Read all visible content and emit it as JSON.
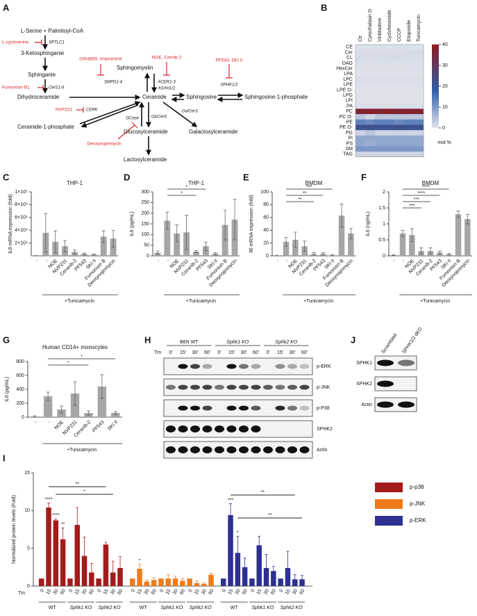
{
  "panels": [
    "A",
    "B",
    "C",
    "D",
    "E",
    "F",
    "G",
    "H",
    "I",
    "J"
  ],
  "pathway": {
    "nodes": [
      "L-Serine + Palmitoyl-CoA",
      "3-Ketosphinganie",
      "Sphinganie",
      "Dihydroceramide",
      "Ceramide",
      "Ceramide-1-phosphate",
      "Sphingomyelin",
      "Sphingosine",
      "Sphingosine-1-phosphate",
      "Glucosylceramide",
      "Galactosylceramide",
      "Lactosylceramide"
    ],
    "enzymes": [
      "SPTLC1",
      "CerS1-6",
      "CERK",
      "SMPD1-4",
      "ACER1-3",
      "ASAH1/2",
      "SPHK1/2",
      "GalCerS",
      "GlcCerS",
      "GCase"
    ],
    "inhibitors": [
      "L-cycloserine",
      "Fumonisin B1",
      "NVP231",
      "GW4869, Imipramine",
      "NOE, Cernib-2",
      "PF543, SKI II",
      "Deoxynojirimycin"
    ]
  },
  "heatmap": {
    "columns": [
      "Ctr",
      "Cytochalasin D",
      "Vinblastine",
      "Cycloheximide",
      "CCCP",
      "Etoposide",
      "Tunicamycin"
    ],
    "rows": [
      "CE",
      "Cer",
      "CL",
      "DAG",
      "HexCer",
      "LPA",
      "LPC",
      "LPE",
      "LPE O-",
      "LPG",
      "LPI",
      "PA",
      "PC",
      "PC O-",
      "PE",
      "PE O-",
      "PG",
      "PI",
      "PS",
      "SM",
      "TAG"
    ],
    "values": [
      [
        0.5,
        0.5,
        0.6,
        0.5,
        0.5,
        0.5,
        0.5
      ],
      [
        1,
        1,
        1,
        1,
        1,
        1,
        1.2
      ],
      [
        1.2,
        1,
        1.1,
        1.2,
        1.3,
        1.1,
        1
      ],
      [
        0.6,
        0.5,
        0.6,
        0.6,
        0.5,
        0.6,
        0.6
      ],
      [
        0.4,
        0.4,
        0.4,
        0.4,
        0.4,
        0.4,
        0.5
      ],
      [
        0.1,
        0.1,
        0.1,
        0.1,
        0.1,
        0.1,
        0.1
      ],
      [
        0.8,
        0.8,
        0.8,
        0.8,
        0.8,
        0.8,
        0.8
      ],
      [
        0.5,
        0.5,
        0.5,
        0.5,
        0.5,
        0.5,
        0.5
      ],
      [
        0.2,
        0.2,
        0.2,
        0.2,
        0.2,
        0.2,
        0.2
      ],
      [
        0.1,
        0.1,
        0.1,
        0.1,
        0.1,
        0.1,
        0.1
      ],
      [
        0.2,
        0.2,
        0.2,
        0.2,
        0.2,
        0.2,
        0.2
      ],
      [
        0.6,
        0.6,
        0.6,
        0.6,
        0.6,
        0.6,
        0.6
      ],
      [
        37,
        38,
        37,
        38,
        37,
        38,
        37
      ],
      [
        4,
        2,
        4,
        4,
        4,
        4,
        4
      ],
      [
        13,
        12,
        13,
        13,
        12,
        13,
        13
      ],
      [
        21,
        22,
        21,
        21,
        22,
        21,
        21
      ],
      [
        2,
        4,
        2,
        2,
        2,
        2,
        2
      ],
      [
        8,
        8,
        8,
        8,
        8,
        8,
        8
      ],
      [
        8,
        7,
        8,
        8,
        8,
        8,
        8
      ],
      [
        10,
        10,
        10,
        10,
        10,
        10,
        10
      ],
      [
        2,
        2,
        2,
        2,
        2,
        2,
        2
      ]
    ],
    "colorbar": {
      "lim": [
        0,
        40
      ],
      "ticks": [
        0,
        10,
        20,
        30,
        40
      ],
      "label": "mol %"
    }
  },
  "charts": {
    "C": {
      "type": "bar",
      "title": "THP-1",
      "ylabel": "IL6 mRNA expression (fold)",
      "color": "#a6a6a6",
      "categories": [
        "-",
        "-",
        "NOE",
        "NVP231",
        "Ceranib-2",
        "PF543",
        "SKI II",
        "Fumonisin B",
        "Deoxynojirimycin"
      ],
      "values": [
        300,
        36000,
        22000,
        15000,
        6000,
        3000,
        2000,
        30000,
        27000
      ],
      "errors": [
        200,
        30000,
        17000,
        9000,
        3000,
        1500,
        1000,
        9000,
        13000
      ],
      "ylim": [
        0,
        100000
      ],
      "yticks": [
        {
          "value": 20000,
          "label": "2×10⁴"
        },
        {
          "value": 40000,
          "label": "4×10⁴"
        },
        {
          "value": 60000,
          "label": "6×10⁴"
        },
        {
          "value": 80000,
          "label": "8×10⁴"
        },
        {
          "value": 100000,
          "label": "1×10⁵"
        }
      ],
      "group_label": "+Tunicamycin",
      "significance": []
    },
    "D": {
      "type": "bar",
      "title": "THP-1",
      "ylabel": "IL6 (pg/mL)",
      "color": "#a6a6a6",
      "categories": [
        "-",
        "-",
        "NOE",
        "NVP231",
        "Ceranib-2",
        "PF543",
        "SKI II",
        "Fumonisin B",
        "Deoxynojirimycin"
      ],
      "values": [
        15,
        165,
        105,
        110,
        20,
        45,
        10,
        145,
        170
      ],
      "errors": [
        8,
        40,
        40,
        80,
        5,
        20,
        5,
        70,
        95
      ],
      "ylim": [
        0,
        300
      ],
      "yticks": [
        0,
        50,
        100,
        150,
        200,
        250,
        300
      ],
      "group_label": "+Tunicamycin",
      "significance": [
        "*",
        "*"
      ]
    },
    "E": {
      "type": "bar",
      "title": "BMDM",
      "ylabel": "Il6 mRNA expression (fold)",
      "color": "#a6a6a6",
      "categories": [
        "-",
        "-",
        "NOE",
        "NVP231",
        "Ceranib-2",
        "PF543",
        "SKI II",
        "Fumonisin B",
        "Deoxynojirimycin"
      ],
      "values": [
        0.5,
        22,
        25,
        15,
        3,
        3,
        1,
        63,
        35
      ],
      "errors": [
        0.5,
        7,
        12,
        8,
        2,
        2,
        1,
        18,
        8
      ],
      "ylim": [
        0,
        100
      ],
      "yticks": [
        0,
        20,
        40,
        60,
        80,
        100
      ],
      "group_label": "+Tunicamycin",
      "significance": [
        "***",
        "**",
        "**"
      ]
    },
    "F": {
      "type": "bar",
      "title": "BMDM",
      "ylabel": "IL6 (ng/mL)",
      "color": "#a6a6a6",
      "categories": [
        "-",
        "-",
        "NOE",
        "NVP231",
        "Ceranib-2",
        "PF543",
        "SKI II",
        "Fumonisin B",
        "Deoxynojirimycin"
      ],
      "values": [
        0.02,
        0.7,
        0.65,
        0.15,
        0.15,
        0.1,
        0.05,
        1.3,
        1.15
      ],
      "errors": [
        0.01,
        0.1,
        0.2,
        0.1,
        0.1,
        0.05,
        0.03,
        0.1,
        0.15
      ],
      "ylim": [
        0,
        2
      ],
      "yticks": [
        0,
        0.5,
        1,
        1.5,
        2
      ],
      "group_label": "+Tunicamycin",
      "significance": [
        "****",
        "****",
        "***",
        "***"
      ]
    },
    "G": {
      "type": "bar",
      "title": "Human CD14+ monocytes",
      "ylabel": "IL6 (pg/mL)",
      "color": "#a6a6a6",
      "categories": [
        "-",
        "-",
        "NOE",
        "NVP231",
        "Ceranib-2",
        "PF543",
        "SKI II"
      ],
      "values": [
        10,
        300,
        110,
        340,
        60,
        440,
        60
      ],
      "errors": [
        10,
        60,
        50,
        170,
        30,
        170,
        20
      ],
      "ylim": [
        0,
        800
      ],
      "yticks": [
        0,
        200,
        400,
        600,
        800
      ],
      "group_label": "+Tunicamycin",
      "significance": [
        "*",
        "*"
      ]
    }
  },
  "blot_H": {
    "tm": "Tm",
    "groups": [
      "B6N WT",
      "Sphk1 KO",
      "Sphk2 KO"
    ],
    "times": [
      "0'",
      "15'",
      "30'",
      "60'"
    ],
    "rows": [
      "p-ERK",
      "p-JNK",
      "p-P38",
      "SPHK2",
      "Actin"
    ]
  },
  "blot_J": {
    "lanes": [
      "Scrambled",
      "SPHK1/2 dKD"
    ],
    "rows": [
      "SPHK1",
      "SPHK2",
      "Actin"
    ]
  },
  "chart_I": {
    "type": "bar",
    "ylabel": "Normalized protein levels (Fold)",
    "x_label": "Tm",
    "categories": [
      "0",
      "15",
      "30",
      "60",
      "0",
      "15",
      "30",
      "60",
      "0",
      "15",
      "30",
      "60"
    ],
    "groups": [
      "WT",
      "Sphk1 KO",
      "Sphk2 KO"
    ],
    "ylim": [
      0,
      15
    ],
    "yticks": [
      0,
      5,
      10,
      15
    ],
    "series": [
      {
        "name": "p-p38",
        "color": "#a31c1c",
        "values": [
          1,
          10.4,
          8.7,
          6.2,
          1,
          8.1,
          4.0,
          1.8,
          1,
          5.5,
          1.8,
          2.4
        ],
        "errors": [
          null,
          0.6,
          0.2,
          1.5,
          null,
          2.3,
          2.5,
          1.2,
          null,
          0.3,
          1.5,
          1.5
        ],
        "stars": [
          null,
          "****",
          "****",
          "**",
          null,
          null,
          null,
          null,
          null,
          null,
          null,
          null
        ]
      },
      {
        "name": "p-JNK",
        "color": "#f07b1c",
        "values": [
          1,
          2.3,
          0.6,
          0.8,
          1,
          1,
          1,
          0.7,
          1,
          0.4,
          0.3,
          1.5
        ],
        "errors": [
          null,
          0.6,
          0.2,
          0.3,
          null,
          0.5,
          0.3,
          0.3,
          null,
          0.3,
          0.1,
          0.2
        ],
        "stars": [
          null,
          "*",
          null,
          null,
          null,
          null,
          null,
          null,
          null,
          null,
          null,
          null
        ]
      },
      {
        "name": "p-ERK",
        "color": "#2e3192",
        "values": [
          1,
          9.4,
          4.4,
          2.5,
          1,
          5.4,
          2.4,
          2.0,
          1,
          2.4,
          0.9,
          0.9
        ],
        "errors": [
          null,
          1.5,
          2.2,
          1.2,
          null,
          1.2,
          1.8,
          0.6,
          null,
          2.2,
          0.6,
          0.5
        ],
        "stars": [
          null,
          "***",
          "*",
          null,
          null,
          null,
          null,
          null,
          null,
          null,
          null,
          null
        ]
      }
    ],
    "significance": [
      "**",
      "*",
      "**",
      "**"
    ]
  }
}
